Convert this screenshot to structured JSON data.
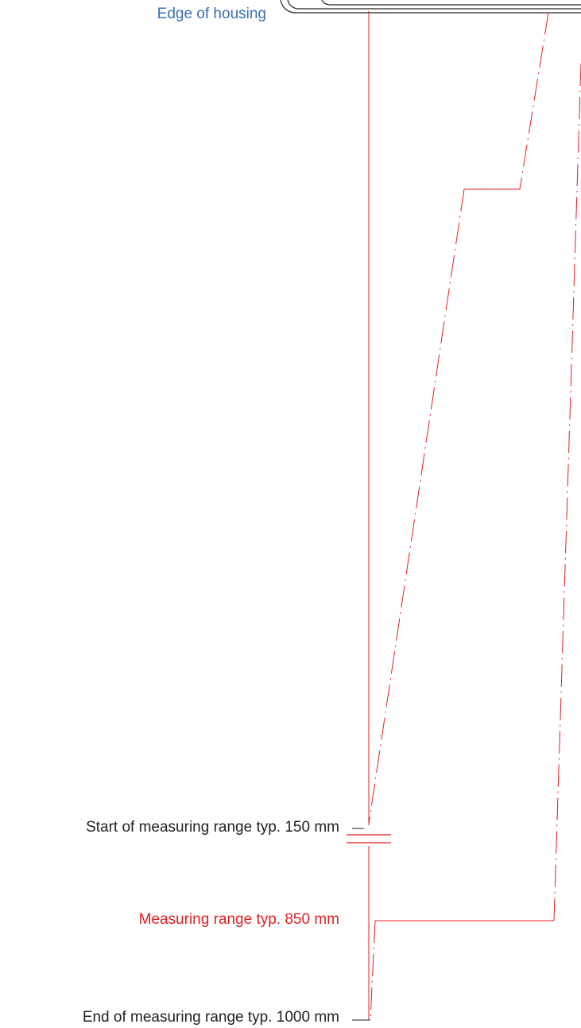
{
  "labels": {
    "edge_of_housing": "Edge of housing",
    "start_range": "Start of measuring range typ. 150 mm",
    "measuring_range": "Measuring range typ. 850 mm",
    "end_range": "End of measuring range typ. 1000 mm"
  },
  "colors": {
    "beam": "#e02020",
    "housing": "#222222",
    "housing_label": "#3a6eb5",
    "text": "#222222"
  }
}
